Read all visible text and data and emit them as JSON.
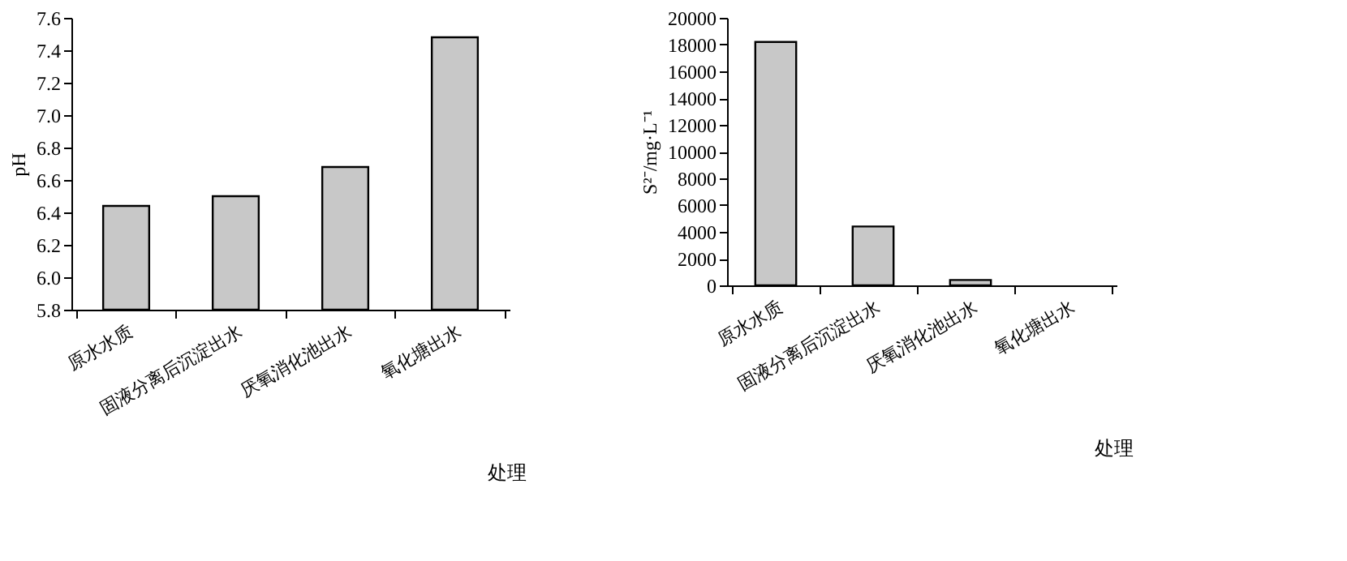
{
  "chart_data": [
    {
      "type": "bar",
      "xlabel": "处理",
      "ylabel": "pH",
      "categories": [
        "原水水质",
        "固液分离后沉淀出水",
        "厌氧消化池出水",
        "氧化塘出水"
      ],
      "values": [
        6.44,
        6.5,
        6.68,
        7.48
      ],
      "color": "#c8c8c8",
      "ylim": [
        5.8,
        7.6
      ],
      "yticks": [
        {
          "value": 5.8,
          "label": "5.8"
        },
        {
          "value": 6.0,
          "label": "6.0"
        },
        {
          "value": 6.2,
          "label": "6.2"
        },
        {
          "value": 6.4,
          "label": "6.4"
        },
        {
          "value": 6.6,
          "label": "6.6"
        },
        {
          "value": 6.8,
          "label": "6.8"
        },
        {
          "value": 7.0,
          "label": "7.0"
        },
        {
          "value": 7.2,
          "label": "7.2"
        },
        {
          "value": 7.4,
          "label": "7.4"
        },
        {
          "value": 7.6,
          "label": "7.6"
        }
      ],
      "grid": false
    },
    {
      "type": "bar",
      "xlabel": "处理",
      "ylabel": "S²⁻/mg·L⁻¹",
      "categories": [
        "原水水质",
        "固液分离后沉淀出水",
        "厌氧消化池出水",
        "氧化塘出水"
      ],
      "values": [
        18200,
        4400,
        400,
        null
      ],
      "color": "#c8c8c8",
      "ylim": [
        0,
        20000
      ],
      "yticks": [
        0,
        2000,
        4000,
        6000,
        8000,
        10000,
        12000,
        14000,
        16000,
        18000,
        20000
      ],
      "grid": false
    }
  ]
}
